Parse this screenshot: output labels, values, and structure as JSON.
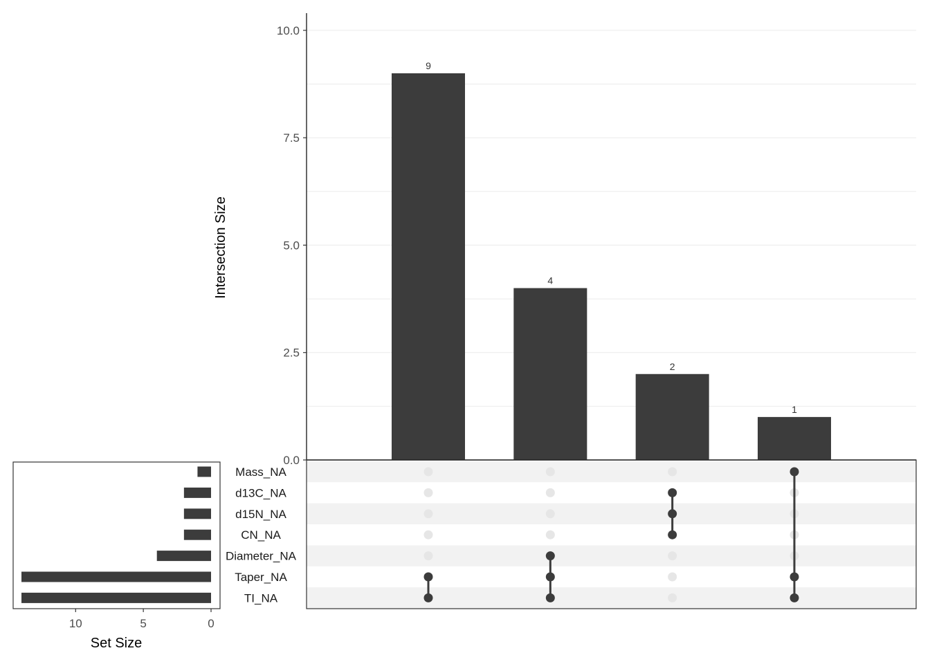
{
  "colors": {
    "bar": "#3c3c3c",
    "dot_active": "#3c3c3c",
    "dot_inactive": "#e6e6e6",
    "stripe": "#f2f2f2",
    "grid": "#ebebeb"
  },
  "chart_data": {
    "type": "upset",
    "intersection_panel": {
      "type": "bar",
      "ylabel": "Intersection Size",
      "ylim": [
        0,
        10.4
      ],
      "yticks": [
        0.0,
        2.5,
        5.0,
        7.5,
        10.0
      ],
      "ytick_labels": [
        "0.0",
        "2.5",
        "5.0",
        "7.5",
        "10.0"
      ],
      "values": [
        9,
        4,
        2,
        1
      ],
      "value_labels": [
        "9",
        "4",
        "2",
        "1"
      ]
    },
    "sets": [
      "Mass_NA",
      "d13C_NA",
      "d15N_NA",
      "CN_NA",
      "Diameter_NA",
      "Taper_NA",
      "TI_NA"
    ],
    "matrix": [
      [
        "Taper_NA",
        "TI_NA"
      ],
      [
        "Diameter_NA",
        "Taper_NA",
        "TI_NA"
      ],
      [
        "d13C_NA",
        "d15N_NA",
        "CN_NA"
      ],
      [
        "Mass_NA",
        "Taper_NA",
        "TI_NA"
      ]
    ],
    "set_size_panel": {
      "type": "bar",
      "orientation": "horizontal-reversed",
      "xlabel": "Set Size",
      "xlim": [
        0,
        14.5
      ],
      "xticks": [
        10,
        5,
        0
      ],
      "xtick_labels": [
        "10",
        "5",
        "0"
      ],
      "values": [
        1,
        2,
        2,
        2,
        4,
        14,
        14
      ]
    }
  }
}
